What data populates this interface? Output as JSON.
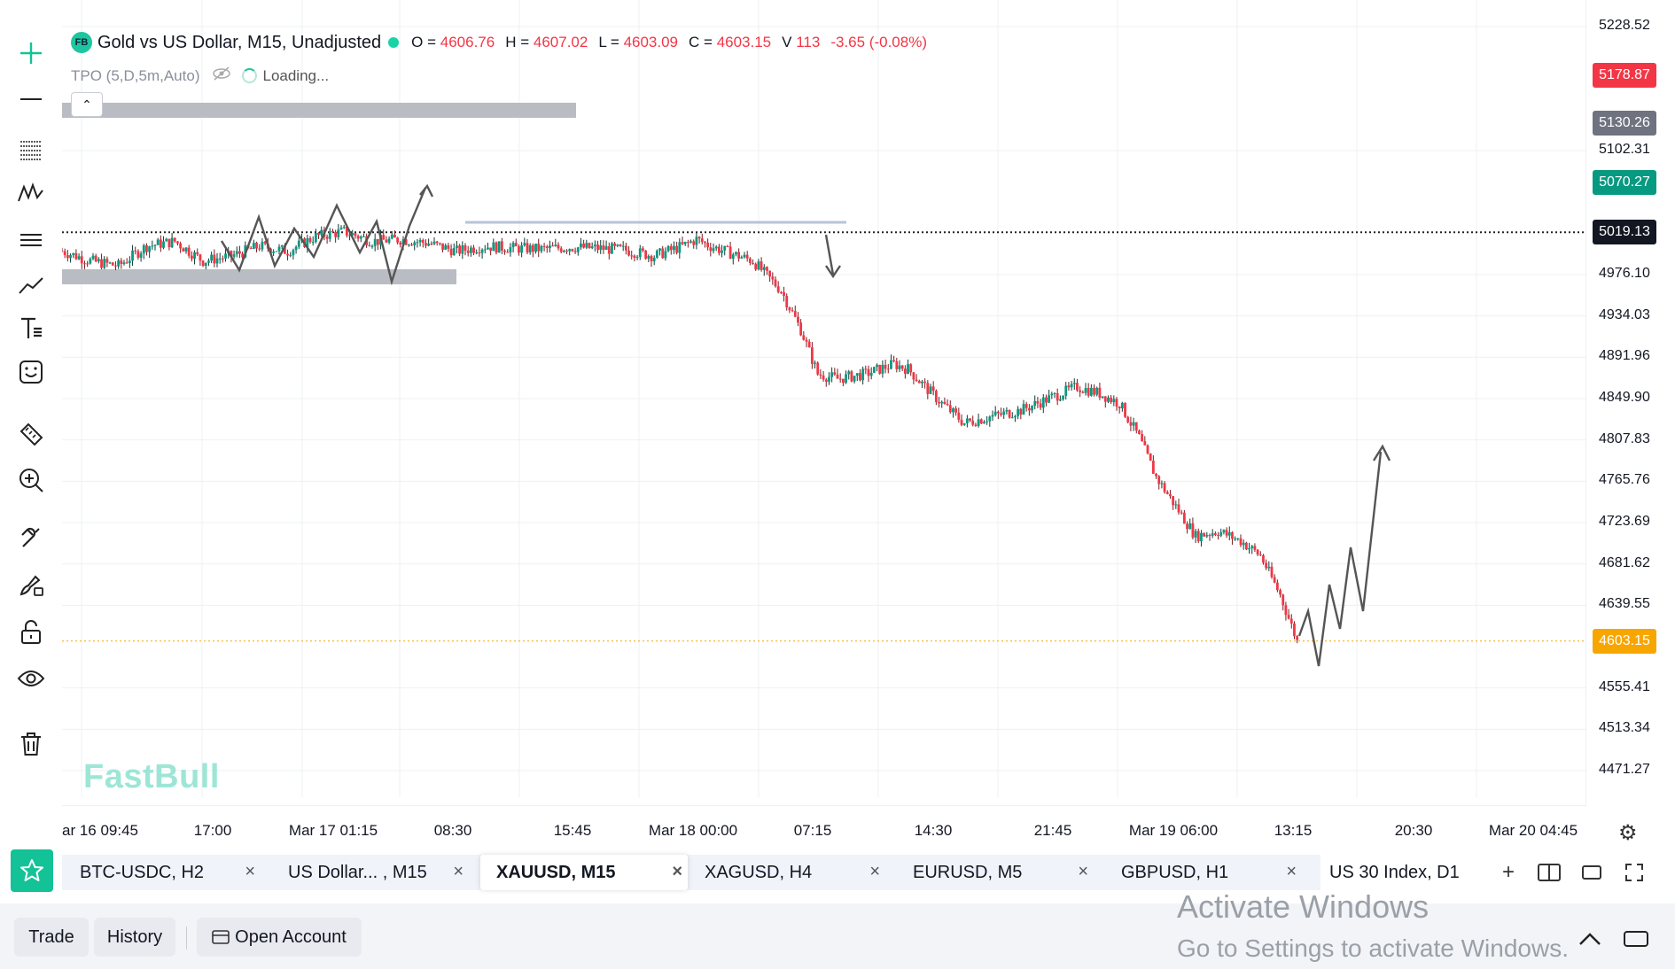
{
  "legend": {
    "badge": "FB",
    "title": "Gold vs US Dollar, M15, Unadjusted",
    "ohlc": [
      {
        "k": "O =",
        "v": "4606.76"
      },
      {
        "k": "H =",
        "v": "4607.02"
      },
      {
        "k": "L =",
        "v": "4603.09"
      },
      {
        "k": "C =",
        "v": "4603.15"
      },
      {
        "k": "V",
        "v": "113"
      }
    ],
    "change": "-3.65 (-0.08%)"
  },
  "indicator": {
    "name": "TPO (5,D,5m,Auto)",
    "status": "Loading..."
  },
  "brand": "FastBull",
  "colors": {
    "up": "#089981",
    "down": "#f23645",
    "accent": "#13c296",
    "current": "#f7a600"
  },
  "toolbar": [
    {
      "name": "crosshair-icon"
    },
    {
      "name": "horizontal-line-icon"
    },
    {
      "name": "fib-lines-icon"
    },
    {
      "name": "pattern-icon"
    },
    {
      "name": "parallel-channel-icon"
    },
    {
      "name": "trend-line-icon"
    },
    {
      "name": "text-tool-icon"
    },
    {
      "name": "emoji-icon"
    },
    {
      "name": "ruler-icon"
    },
    {
      "name": "zoom-in-icon"
    },
    {
      "name": "magnet-icon"
    },
    {
      "name": "brush-lock-icon"
    },
    {
      "name": "lock-icon"
    },
    {
      "name": "eye-icon"
    },
    {
      "name": "trash-icon"
    }
  ],
  "chart_data": {
    "type": "candlestick",
    "symbol": "XAUUSD",
    "timeframe": "M15",
    "x_ticks": [
      "ar 16 09:45",
      "17:00",
      "Mar 17 01:15",
      "08:30",
      "15:45",
      "Mar 18 00:00",
      "07:15",
      "14:30",
      "21:45",
      "Mar 19 06:00",
      "13:15",
      "20:30",
      "Mar 20 04:45"
    ],
    "y_ticks": [
      "5228.52",
      "5102.31",
      "4976.10",
      "4934.03",
      "4891.96",
      "4849.90",
      "4807.83",
      "4765.76",
      "4723.69",
      "4681.62",
      "4639.55",
      "4555.41",
      "4513.34",
      "4471.27"
    ],
    "ylim": [
      4471.27,
      5228.52
    ],
    "price_tags": [
      {
        "value": "5178.87",
        "color": "#f23645"
      },
      {
        "value": "5130.26",
        "color": "#6f7380"
      },
      {
        "value": "5070.27",
        "color": "#089981"
      },
      {
        "value": "5019.13",
        "color": "#131722"
      },
      {
        "value": "4603.15",
        "color": "#f7a600"
      }
    ],
    "path_close": [
      [
        0,
        5000
      ],
      [
        10,
        4990
      ],
      [
        20,
        4985
      ],
      [
        30,
        5005
      ],
      [
        40,
        5010
      ],
      [
        50,
        4990
      ],
      [
        60,
        4995
      ],
      [
        70,
        5005
      ],
      [
        80,
        5000
      ],
      [
        90,
        5015
      ],
      [
        100,
        5020
      ],
      [
        110,
        5010
      ],
      [
        120,
        5012
      ],
      [
        130,
        5008
      ],
      [
        140,
        5000
      ],
      [
        150,
        5005
      ],
      [
        160,
        5003
      ],
      [
        170,
        5002
      ],
      [
        180,
        5004
      ],
      [
        190,
        5003
      ],
      [
        200,
        5001
      ],
      [
        210,
        4995
      ],
      [
        220,
        5005
      ],
      [
        225,
        5012
      ],
      [
        230,
        5005
      ],
      [
        235,
        5000
      ],
      [
        245,
        4990
      ],
      [
        255,
        4960
      ],
      [
        262,
        4920
      ],
      [
        268,
        4875
      ],
      [
        275,
        4870
      ],
      [
        285,
        4875
      ],
      [
        295,
        4885
      ],
      [
        300,
        4880
      ],
      [
        305,
        4865
      ],
      [
        312,
        4845
      ],
      [
        320,
        4825
      ],
      [
        330,
        4832
      ],
      [
        340,
        4838
      ],
      [
        350,
        4850
      ],
      [
        360,
        4862
      ],
      [
        368,
        4855
      ],
      [
        375,
        4845
      ],
      [
        382,
        4810
      ],
      [
        388,
        4770
      ],
      [
        395,
        4740
      ],
      [
        402,
        4710
      ],
      [
        410,
        4715
      ],
      [
        418,
        4705
      ],
      [
        425,
        4690
      ],
      [
        432,
        4650
      ],
      [
        438,
        4603
      ]
    ],
    "x_count": 440,
    "path_x_extent": 438
  },
  "tabs": [
    {
      "label": "BTC-USDC, H2",
      "active": false
    },
    {
      "label": "US Dollar... , M15",
      "active": false
    },
    {
      "label": "XAUUSD, M15",
      "active": true
    },
    {
      "label": "XAGUSD, H4",
      "active": false
    },
    {
      "label": "EURUSD, M5",
      "active": false
    },
    {
      "label": "GBPUSD, H1",
      "active": false
    },
    {
      "label": "US 30 Index, D1",
      "active": false
    }
  ],
  "tab_close": "×",
  "footer": {
    "trade": "Trade",
    "history": "History",
    "open_account": "Open Account"
  },
  "windows": {
    "line1": "Activate Windows",
    "line2": "Go to Settings to activate Windows."
  }
}
